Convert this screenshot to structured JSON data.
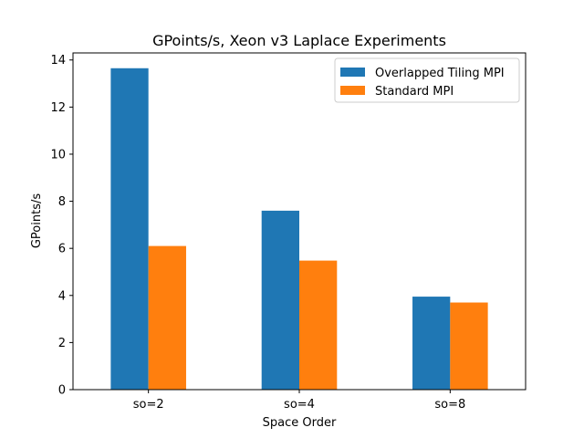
{
  "chart_data": {
    "type": "bar",
    "title": "GPoints/s, Xeon v3 Laplace Experiments",
    "xlabel": "Space Order",
    "ylabel": "GPoints/s",
    "categories": [
      "so=2",
      "so=4",
      "so=8"
    ],
    "series": [
      {
        "name": "Overlapped Tiling MPI",
        "values": [
          13.65,
          7.6,
          3.95
        ],
        "color": "#1f77b4"
      },
      {
        "name": "Standard MPI",
        "values": [
          6.1,
          5.48,
          3.7
        ],
        "color": "#ff7f0e"
      }
    ],
    "ylim": [
      0,
      14.3
    ],
    "yticks": [
      0,
      2,
      4,
      6,
      8,
      10,
      12,
      14
    ],
    "grid": false,
    "legend_position": "top-right"
  }
}
